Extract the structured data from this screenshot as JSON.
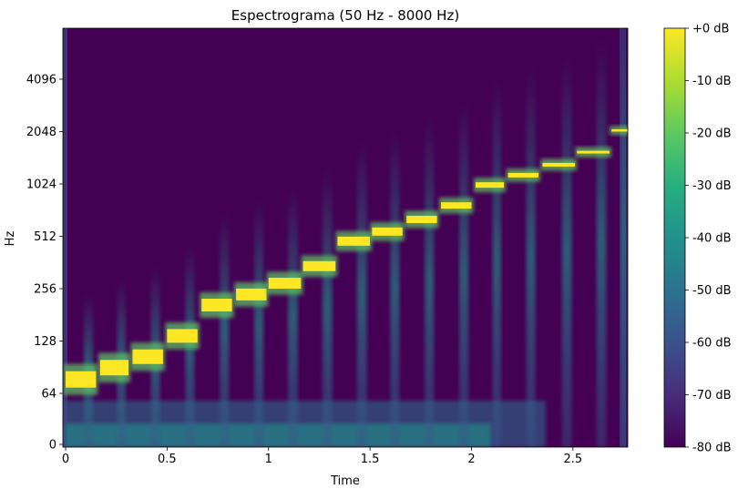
{
  "chart_data": {
    "type": "heatmap",
    "title": "Espectrograma (50 Hz - 8000 Hz)",
    "xlabel": "Time",
    "ylabel": "Hz",
    "x_ticks": [
      {
        "value": 0,
        "label": "0"
      },
      {
        "value": 0.5,
        "label": "0.5"
      },
      {
        "value": 1,
        "label": "1"
      },
      {
        "value": 1.5,
        "label": "1.5"
      },
      {
        "value": 2,
        "label": "2"
      },
      {
        "value": 2.5,
        "label": "2.5"
      }
    ],
    "y_ticks": [
      {
        "value": 0,
        "label": "0"
      },
      {
        "value": 64,
        "label": "64"
      },
      {
        "value": 128,
        "label": "128"
      },
      {
        "value": 256,
        "label": "256"
      },
      {
        "value": 512,
        "label": "512"
      },
      {
        "value": 1024,
        "label": "1024"
      },
      {
        "value": 2048,
        "label": "2048"
      },
      {
        "value": 4096,
        "label": "4096"
      }
    ],
    "xlim": [
      0,
      2.77
    ],
    "ylim": [
      0,
      8000
    ],
    "y_scale": "log2",
    "colormap": "viridis",
    "colorbar": {
      "min_db": -80,
      "max_db": 0,
      "ticks": [
        "+0 dB",
        "-10 dB",
        "-20 dB",
        "-30 dB",
        "-40 dB",
        "-50 dB",
        "-60 dB",
        "-70 dB",
        "-80 dB"
      ]
    },
    "notes_estimated": [
      {
        "start": 0.0,
        "end": 0.15,
        "freq_hz": 77
      },
      {
        "start": 0.17,
        "end": 0.31,
        "freq_hz": 90
      },
      {
        "start": 0.33,
        "end": 0.48,
        "freq_hz": 104
      },
      {
        "start": 0.5,
        "end": 0.65,
        "freq_hz": 137
      },
      {
        "start": 0.67,
        "end": 0.82,
        "freq_hz": 206
      },
      {
        "start": 0.84,
        "end": 0.99,
        "freq_hz": 237
      },
      {
        "start": 1.0,
        "end": 1.16,
        "freq_hz": 275
      },
      {
        "start": 1.17,
        "end": 1.33,
        "freq_hz": 345
      },
      {
        "start": 1.34,
        "end": 1.5,
        "freq_hz": 480
      },
      {
        "start": 1.51,
        "end": 1.66,
        "freq_hz": 545
      },
      {
        "start": 1.68,
        "end": 1.83,
        "freq_hz": 640
      },
      {
        "start": 1.85,
        "end": 2.0,
        "freq_hz": 770
      },
      {
        "start": 2.02,
        "end": 2.16,
        "freq_hz": 1010
      },
      {
        "start": 2.18,
        "end": 2.33,
        "freq_hz": 1150
      },
      {
        "start": 2.35,
        "end": 2.51,
        "freq_hz": 1320
      },
      {
        "start": 2.52,
        "end": 2.68,
        "freq_hz": 1560
      },
      {
        "start": 2.69,
        "end": 2.77,
        "freq_hz": 2080
      }
    ]
  }
}
